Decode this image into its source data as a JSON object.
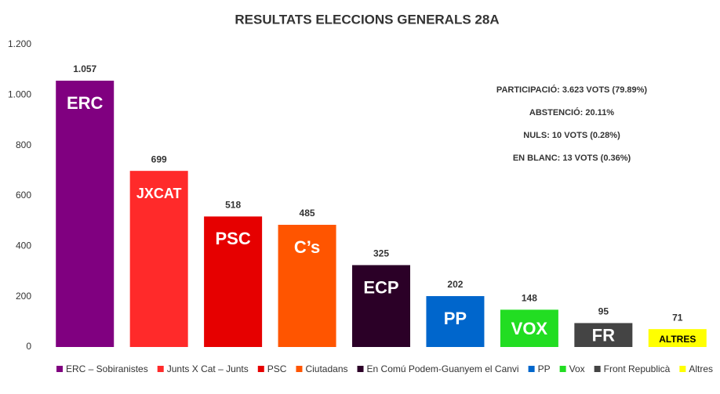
{
  "chart_data": {
    "type": "bar",
    "title": "RESULTATS ELECCIONS GENERALS 28A",
    "categories": [
      "ERC – Sobiranistes",
      "Junts X Cat – Junts",
      "PSC",
      "Ciutadans",
      "En Comú Podem-Guanyem el Canvi",
      "PP",
      "Vox",
      "Front Republicà",
      "Altres"
    ],
    "bar_labels": [
      "ERC",
      "JXCAT",
      "PSC",
      "C’s",
      "ECP",
      "PP",
      "VOX",
      "FR",
      "ALTRES"
    ],
    "values": [
      1057,
      699,
      518,
      485,
      325,
      202,
      148,
      95,
      71
    ],
    "value_labels": [
      "1.057",
      "699",
      "518",
      "485",
      "325",
      "202",
      "148",
      "95",
      "71"
    ],
    "colors": [
      "#800080",
      "#ff2a2a",
      "#e60000",
      "#ff5500",
      "#2b0027",
      "#0066cc",
      "#22dd22",
      "#444444",
      "#ffff00"
    ],
    "ylim": [
      0,
      1200
    ],
    "yticks": [
      0,
      200,
      400,
      600,
      800,
      {
        "value": 1000,
        "label": "1.000"
      },
      {
        "value": 1200,
        "label": "1.200"
      }
    ],
    "grid": false,
    "legend": "bottom",
    "annotations": [
      "PARTICIPACIÓ: 3.623 VOTS (79.89%)",
      "ABSTENCIÓ: 20.11%",
      "NULS: 10 VOTS (0.28%)",
      "EN  BLANC: 13 VOTS (0.36%)"
    ]
  }
}
